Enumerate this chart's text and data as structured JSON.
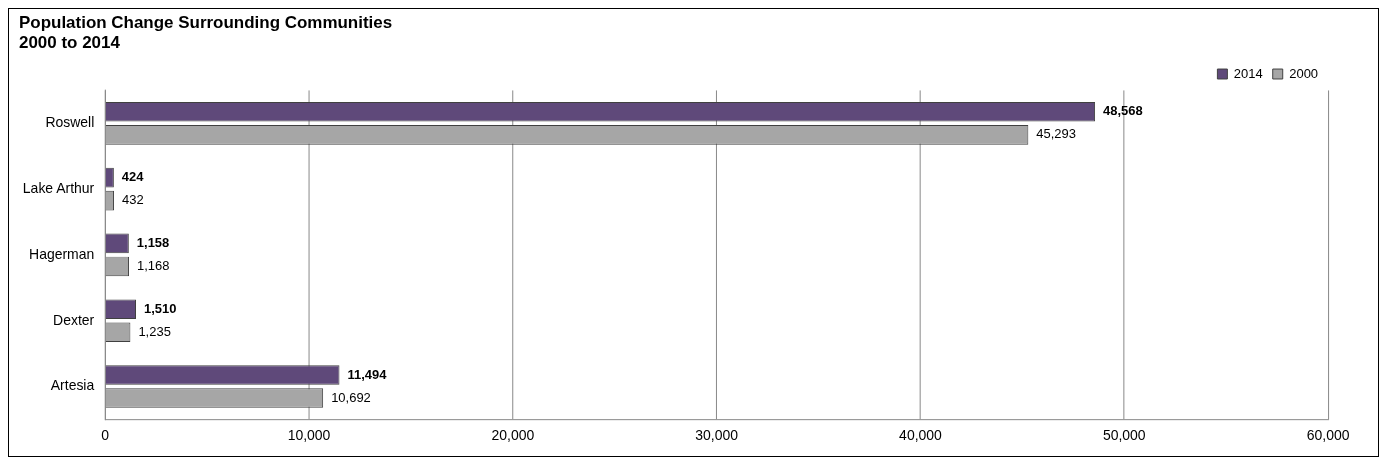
{
  "chart_data": {
    "type": "bar",
    "orientation": "horizontal",
    "title": "Population Change Surrounding Communities",
    "subtitle": "2000 to 2014",
    "categories": [
      "Roswell",
      "Lake Arthur",
      "Hagerman",
      "Dexter",
      "Artesia"
    ],
    "series": [
      {
        "name": "2014",
        "color": "#5f497a",
        "values": [
          48568,
          424,
          1158,
          1510,
          11494
        ],
        "value_labels": [
          "48,568",
          "424",
          "1,158",
          "1,510",
          "11,494"
        ]
      },
      {
        "name": "2000",
        "color": "#a6a6a6",
        "values": [
          45293,
          432,
          1168,
          1235,
          10692
        ],
        "value_labels": [
          "45,293",
          "432",
          "1,168",
          "1,235",
          "10,692"
        ]
      }
    ],
    "xlim": [
      0,
      60000
    ],
    "xticks": [
      0,
      {
        "value": 10000,
        "label": "10,000"
      },
      {
        "value": 20000,
        "label": "20,000"
      },
      {
        "value": 30000,
        "label": "30,000"
      },
      {
        "value": 40000,
        "label": "40,000"
      },
      {
        "value": 50000,
        "label": "50,000"
      },
      {
        "value": 60000,
        "label": "60,000"
      }
    ],
    "grid": "x",
    "legend": "top right"
  }
}
